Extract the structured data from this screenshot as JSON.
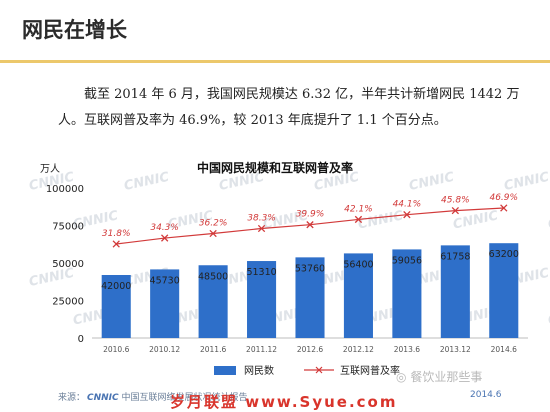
{
  "slide": {
    "title": "网民在增长",
    "intro": "截至 2014 年 6 月，我国网民规模达 6.32 亿，半年共计新增网民 1442 万人。互联网普及率为 46.9%，较 2013 年底提升了 1.1 个百分点。"
  },
  "chart_data": {
    "type": "bar",
    "title": "中国网民规模和互联网普及率",
    "ylabel": "万人",
    "ylim": [
      0,
      100000
    ],
    "yticks": [
      "0",
      "25000",
      "50000",
      "75000",
      "100000"
    ],
    "categories": [
      "2010.6",
      "2010.12",
      "2011.6",
      "2011.12",
      "2012.6",
      "2012.12",
      "2013.6",
      "2013.12",
      "2014.6"
    ],
    "series": [
      {
        "name": "网民数",
        "kind": "bar",
        "values": [
          42000,
          45730,
          48500,
          51310,
          53760,
          56400,
          59056,
          61758,
          63200
        ],
        "labels": [
          "42000",
          "45730",
          "48500",
          "51310",
          "53760",
          "56400",
          "59056",
          "61758",
          "63200"
        ],
        "color": "#2e6fc9"
      },
      {
        "name": "互联网普及率",
        "kind": "line",
        "unit": "%",
        "values": [
          31.8,
          34.3,
          36.2,
          38.3,
          39.9,
          42.1,
          44.1,
          45.8,
          46.9
        ],
        "labels": [
          "31.8%",
          "34.3%",
          "36.2%",
          "38.3%",
          "39.9%",
          "42.1%",
          "44.1%",
          "45.8%",
          "46.9%"
        ],
        "color": "#d23a3a"
      }
    ],
    "legend": {
      "position": "bottom"
    },
    "grid": false
  },
  "footer": {
    "source_prefix": "来源：",
    "source_logo": "CNNIC",
    "source_text": "中国互联网络发展状况统计报告",
    "date": "2014.6",
    "site_mark": "岁月联盟 www.Syue.com",
    "wechat": "餐饮业那些事"
  }
}
